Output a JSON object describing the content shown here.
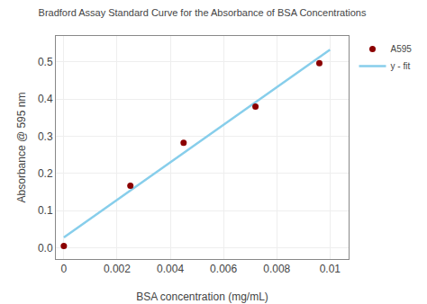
{
  "chart_data": {
    "type": "scatter",
    "title": "Bradford Assay Standard Curve for the Absorbance of BSA Concentrations",
    "xlabel": "BSA concentration (mg/mL)",
    "ylabel": "Absorbance @ 595 nm",
    "series": [
      {
        "name": "A595",
        "type": "scatter",
        "color": "#8B0000",
        "marker": "circle",
        "x": [
          0.0,
          0.0025,
          0.0045,
          0.0072,
          0.0096
        ],
        "values": [
          0.005,
          0.167,
          0.283,
          0.38,
          0.497
        ]
      },
      {
        "name": "y - fit",
        "type": "line",
        "color": "#87CEEB",
        "line_style": "solid",
        "x": [
          0.0,
          0.01
        ],
        "values": [
          0.028,
          0.533
        ]
      }
    ],
    "xlim": [
      -0.0003,
      0.0107
    ],
    "ylim": [
      -0.03,
      0.57
    ],
    "xticks": [
      0,
      0.002,
      0.004,
      0.006,
      0.008,
      0.01
    ],
    "yticks": [
      {
        "value": 0,
        "label": "0.0"
      },
      0.1,
      0.2,
      0.3,
      0.4,
      0.5
    ],
    "grid": true,
    "legend": "upper right"
  }
}
